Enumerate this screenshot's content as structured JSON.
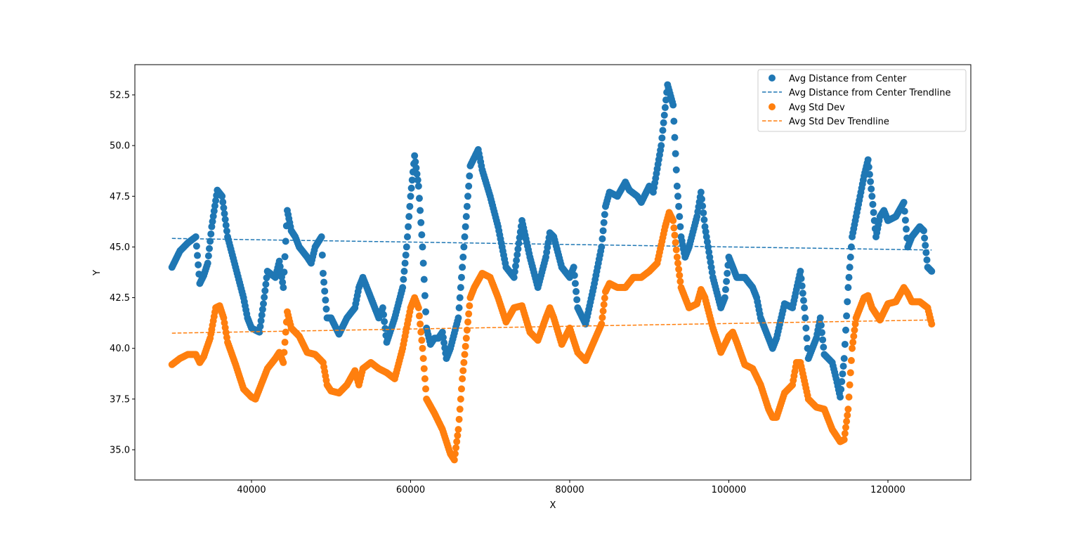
{
  "chart_data": {
    "type": "scatter",
    "title": "",
    "xlabel": "X",
    "ylabel": "Y",
    "xlim": [
      25340,
      130420
    ],
    "ylim": [
      33.51,
      53.99
    ],
    "xticks": [
      40000,
      60000,
      80000,
      100000,
      120000
    ],
    "xtick_labels": [
      "40000",
      "60000",
      "80000",
      "100000",
      "120000"
    ],
    "yticks": [
      35.0,
      37.5,
      40.0,
      42.5,
      45.0,
      47.5,
      50.0,
      52.5
    ],
    "ytick_labels": [
      "35.0",
      "37.5",
      "40.0",
      "42.5",
      "45.0",
      "47.5",
      "50.0",
      "52.5"
    ],
    "grid": false,
    "legend_position": "top-right",
    "series": [
      {
        "name": "Avg Distance from Center",
        "kind": "scatter",
        "color": "#1f77b4",
        "points": [
          [
            30000,
            44.0
          ],
          [
            31000,
            44.8
          ],
          [
            32000,
            45.2
          ],
          [
            33000,
            45.5
          ],
          [
            33500,
            43.2
          ],
          [
            34000,
            43.6
          ],
          [
            34500,
            44.2
          ],
          [
            35000,
            46.0
          ],
          [
            35700,
            47.8
          ],
          [
            36300,
            47.5
          ],
          [
            37000,
            45.5
          ],
          [
            38000,
            44.0
          ],
          [
            39000,
            42.5
          ],
          [
            39500,
            41.5
          ],
          [
            40000,
            41.0
          ],
          [
            41000,
            40.8
          ],
          [
            41500,
            42.2
          ],
          [
            42000,
            43.8
          ],
          [
            43000,
            43.5
          ],
          [
            43500,
            44.3
          ],
          [
            44000,
            43.0
          ],
          [
            44500,
            46.8
          ],
          [
            45000,
            45.8
          ],
          [
            45500,
            45.5
          ],
          [
            46000,
            45.0
          ],
          [
            47000,
            44.5
          ],
          [
            47500,
            44.2
          ],
          [
            48000,
            45.0
          ],
          [
            48800,
            45.5
          ],
          [
            49000,
            43.7
          ],
          [
            49500,
            41.5
          ],
          [
            50000,
            41.5
          ],
          [
            51000,
            40.7
          ],
          [
            52000,
            41.5
          ],
          [
            53000,
            42.0
          ],
          [
            53500,
            43.0
          ],
          [
            54000,
            43.5
          ],
          [
            55000,
            42.5
          ],
          [
            56000,
            41.5
          ],
          [
            56500,
            42.0
          ],
          [
            57000,
            40.3
          ],
          [
            58000,
            41.5
          ],
          [
            59000,
            43.0
          ],
          [
            59500,
            45.0
          ],
          [
            60000,
            47.5
          ],
          [
            60500,
            49.5
          ],
          [
            61000,
            48.0
          ],
          [
            61500,
            45.0
          ],
          [
            62000,
            41.0
          ],
          [
            62500,
            40.2
          ],
          [
            63000,
            40.5
          ],
          [
            63500,
            40.5
          ],
          [
            64000,
            40.8
          ],
          [
            64500,
            39.5
          ],
          [
            65000,
            40.0
          ],
          [
            66000,
            41.5
          ],
          [
            66500,
            44.0
          ],
          [
            67000,
            46.5
          ],
          [
            67500,
            49.0
          ],
          [
            68500,
            49.8
          ],
          [
            69000,
            48.8
          ],
          [
            70000,
            47.5
          ],
          [
            71000,
            46.0
          ],
          [
            72000,
            44.0
          ],
          [
            73000,
            43.5
          ],
          [
            74000,
            46.3
          ],
          [
            75000,
            44.5
          ],
          [
            76000,
            43.0
          ],
          [
            77000,
            44.5
          ],
          [
            77500,
            45.7
          ],
          [
            78000,
            45.5
          ],
          [
            79000,
            44.0
          ],
          [
            80000,
            43.5
          ],
          [
            80500,
            44.0
          ],
          [
            81000,
            42.0
          ],
          [
            82000,
            41.2
          ],
          [
            83000,
            43.0
          ],
          [
            84000,
            45.0
          ],
          [
            84500,
            47.0
          ],
          [
            85000,
            47.7
          ],
          [
            86000,
            47.5
          ],
          [
            87000,
            48.2
          ],
          [
            87500,
            47.8
          ],
          [
            88500,
            47.5
          ],
          [
            89000,
            47.2
          ],
          [
            90000,
            48.0
          ],
          [
            90500,
            47.7
          ],
          [
            91500,
            50.0
          ],
          [
            92300,
            53.0
          ],
          [
            93000,
            52.0
          ],
          [
            93500,
            48.0
          ],
          [
            94000,
            45.5
          ],
          [
            94500,
            44.5
          ],
          [
            95000,
            45.0
          ],
          [
            96000,
            46.5
          ],
          [
            96500,
            47.7
          ],
          [
            97000,
            46.0
          ],
          [
            98000,
            43.5
          ],
          [
            99000,
            42.0
          ],
          [
            99500,
            42.5
          ],
          [
            100000,
            44.5
          ],
          [
            101000,
            43.5
          ],
          [
            102000,
            43.5
          ],
          [
            103000,
            43.0
          ],
          [
            103500,
            42.5
          ],
          [
            104000,
            41.5
          ],
          [
            105000,
            40.5
          ],
          [
            105500,
            40.0
          ],
          [
            106000,
            40.5
          ],
          [
            107000,
            42.2
          ],
          [
            108000,
            42.0
          ],
          [
            109000,
            43.8
          ],
          [
            109500,
            42.0
          ],
          [
            110000,
            39.5
          ],
          [
            111000,
            40.5
          ],
          [
            111500,
            41.5
          ],
          [
            112000,
            39.7
          ],
          [
            113000,
            39.3
          ],
          [
            113500,
            38.5
          ],
          [
            114000,
            37.6
          ],
          [
            114500,
            39.5
          ],
          [
            115000,
            43.0
          ],
          [
            115500,
            45.5
          ],
          [
            116000,
            46.5
          ],
          [
            117000,
            48.5
          ],
          [
            117500,
            49.3
          ],
          [
            118000,
            47.5
          ],
          [
            118500,
            45.5
          ],
          [
            119000,
            46.5
          ],
          [
            119500,
            46.8
          ],
          [
            120000,
            46.3
          ],
          [
            121000,
            46.5
          ],
          [
            122000,
            47.2
          ],
          [
            122500,
            45.0
          ],
          [
            123000,
            45.5
          ],
          [
            124000,
            46.0
          ],
          [
            124500,
            45.8
          ],
          [
            125000,
            44.0
          ],
          [
            125500,
            43.8
          ]
        ]
      },
      {
        "name": "Avg Distance from Center Trendline",
        "kind": "dashed-line",
        "color": "#1f77b4",
        "points": [
          [
            30000,
            45.42
          ],
          [
            125500,
            44.85
          ]
        ]
      },
      {
        "name": "Avg Std Dev",
        "kind": "scatter",
        "color": "#ff7f0e",
        "points": [
          [
            30000,
            39.2
          ],
          [
            31000,
            39.5
          ],
          [
            32000,
            39.7
          ],
          [
            33000,
            39.7
          ],
          [
            33500,
            39.3
          ],
          [
            34000,
            39.6
          ],
          [
            34800,
            40.5
          ],
          [
            35500,
            42.0
          ],
          [
            36000,
            42.1
          ],
          [
            36500,
            41.5
          ],
          [
            37000,
            40.3
          ],
          [
            38000,
            39.2
          ],
          [
            39000,
            38.0
          ],
          [
            40000,
            37.6
          ],
          [
            40500,
            37.5
          ],
          [
            41000,
            38.0
          ],
          [
            42000,
            39.0
          ],
          [
            43000,
            39.5
          ],
          [
            43500,
            39.8
          ],
          [
            44000,
            39.3
          ],
          [
            44500,
            41.8
          ],
          [
            45000,
            41.0
          ],
          [
            45500,
            40.8
          ],
          [
            46000,
            40.6
          ],
          [
            47000,
            39.8
          ],
          [
            48000,
            39.7
          ],
          [
            49000,
            39.3
          ],
          [
            49500,
            38.2
          ],
          [
            50000,
            37.9
          ],
          [
            51000,
            37.8
          ],
          [
            52000,
            38.2
          ],
          [
            53000,
            38.9
          ],
          [
            53500,
            38.2
          ],
          [
            54000,
            39.0
          ],
          [
            55000,
            39.3
          ],
          [
            56000,
            39.0
          ],
          [
            57000,
            38.8
          ],
          [
            58000,
            38.5
          ],
          [
            59000,
            40.0
          ],
          [
            60000,
            42.0
          ],
          [
            60500,
            42.5
          ],
          [
            61000,
            42.0
          ],
          [
            61500,
            40.0
          ],
          [
            62000,
            37.5
          ],
          [
            63000,
            36.8
          ],
          [
            64000,
            36.0
          ],
          [
            65000,
            34.8
          ],
          [
            65500,
            34.5
          ],
          [
            66000,
            36.0
          ],
          [
            66500,
            38.5
          ],
          [
            67000,
            40.5
          ],
          [
            67500,
            42.5
          ],
          [
            68000,
            43.0
          ],
          [
            69000,
            43.7
          ],
          [
            70000,
            43.5
          ],
          [
            71000,
            42.5
          ],
          [
            72000,
            41.3
          ],
          [
            73000,
            42.0
          ],
          [
            74000,
            42.1
          ],
          [
            75000,
            40.8
          ],
          [
            76000,
            40.4
          ],
          [
            77000,
            41.5
          ],
          [
            77500,
            42.0
          ],
          [
            78000,
            41.5
          ],
          [
            79000,
            40.2
          ],
          [
            80000,
            41.0
          ],
          [
            81000,
            39.8
          ],
          [
            82000,
            39.4
          ],
          [
            83000,
            40.3
          ],
          [
            84000,
            41.2
          ],
          [
            84500,
            42.8
          ],
          [
            85000,
            43.2
          ],
          [
            86000,
            43.0
          ],
          [
            87000,
            43.0
          ],
          [
            88000,
            43.5
          ],
          [
            89000,
            43.5
          ],
          [
            90000,
            43.8
          ],
          [
            91000,
            44.2
          ],
          [
            92000,
            46.0
          ],
          [
            92500,
            46.7
          ],
          [
            93000,
            46.3
          ],
          [
            93500,
            44.5
          ],
          [
            94000,
            43.0
          ],
          [
            95000,
            42.0
          ],
          [
            96000,
            42.2
          ],
          [
            96500,
            42.9
          ],
          [
            97000,
            42.5
          ],
          [
            98000,
            41.0
          ],
          [
            99000,
            39.8
          ],
          [
            100000,
            40.6
          ],
          [
            100500,
            40.8
          ],
          [
            101000,
            40.3
          ],
          [
            102000,
            39.2
          ],
          [
            103000,
            39.0
          ],
          [
            104000,
            38.2
          ],
          [
            105000,
            37.0
          ],
          [
            105500,
            36.6
          ],
          [
            106000,
            36.6
          ],
          [
            107000,
            37.8
          ],
          [
            108000,
            38.2
          ],
          [
            108500,
            39.3
          ],
          [
            109000,
            39.3
          ],
          [
            110000,
            37.5
          ],
          [
            111000,
            37.1
          ],
          [
            112000,
            37.0
          ],
          [
            113000,
            36.0
          ],
          [
            114000,
            35.4
          ],
          [
            114500,
            35.5
          ],
          [
            115000,
            37.0
          ],
          [
            115500,
            40.0
          ],
          [
            116000,
            41.5
          ],
          [
            117000,
            42.5
          ],
          [
            117500,
            42.6
          ],
          [
            118000,
            42.0
          ],
          [
            119000,
            41.4
          ],
          [
            120000,
            42.2
          ],
          [
            121000,
            42.3
          ],
          [
            122000,
            43.0
          ],
          [
            122500,
            42.7
          ],
          [
            123000,
            42.3
          ],
          [
            124000,
            42.3
          ],
          [
            125000,
            42.0
          ],
          [
            125500,
            41.2
          ]
        ]
      },
      {
        "name": "Avg Std Dev Trendline",
        "kind": "dashed-line",
        "color": "#ff7f0e",
        "points": [
          [
            30000,
            40.75
          ],
          [
            125500,
            41.4
          ]
        ]
      }
    ]
  }
}
